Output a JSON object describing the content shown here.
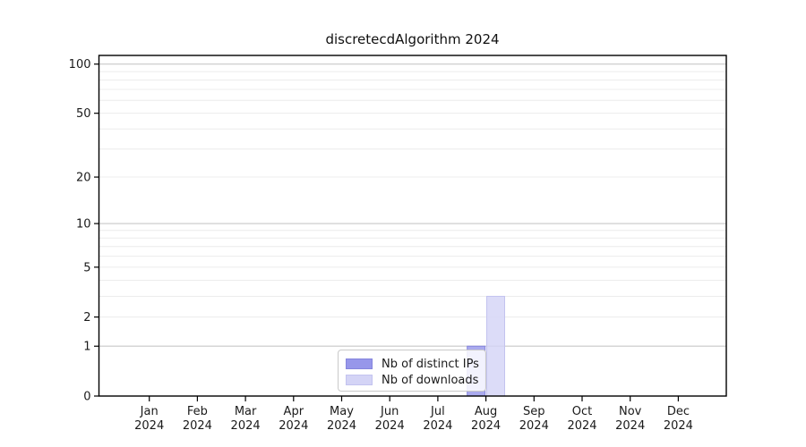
{
  "chart_data": {
    "type": "bar",
    "title": "discretecdAlgorithm 2024",
    "categories": [
      "Jan",
      "Feb",
      "Mar",
      "Apr",
      "May",
      "Jun",
      "Jul",
      "Aug",
      "Sep",
      "Oct",
      "Nov",
      "Dec"
    ],
    "category_year": "2024",
    "series": [
      {
        "name": "Nb of distinct IPs",
        "color": "#9797ea",
        "edge_color": "#8585dd",
        "values": [
          0,
          0,
          0,
          0,
          0,
          0,
          0,
          1,
          0,
          0,
          0,
          0
        ]
      },
      {
        "name": "Nb of downloads",
        "color": "#d4d4f6",
        "edge_color": "#c3c3ef",
        "values": [
          0,
          0,
          0,
          0,
          0,
          0,
          0,
          3,
          0,
          0,
          0,
          0
        ]
      }
    ],
    "y_axis": {
      "scale": "log1p",
      "tick_values": [
        0,
        1,
        2,
        5,
        10,
        20,
        50,
        100
      ],
      "major_gridlines": [
        1,
        10,
        100
      ],
      "minor_gridlines": [
        2,
        3,
        4,
        5,
        6,
        7,
        8,
        9,
        20,
        30,
        40,
        50,
        60,
        70,
        80,
        90
      ],
      "range": [
        0,
        113
      ]
    },
    "legend": {
      "position": "lower center"
    },
    "colors": {
      "grid_major": "#c8c8c8",
      "grid_minor": "#ececec",
      "spine": "#000000",
      "text": "#1a1a1a",
      "background": "#ffffff"
    }
  }
}
